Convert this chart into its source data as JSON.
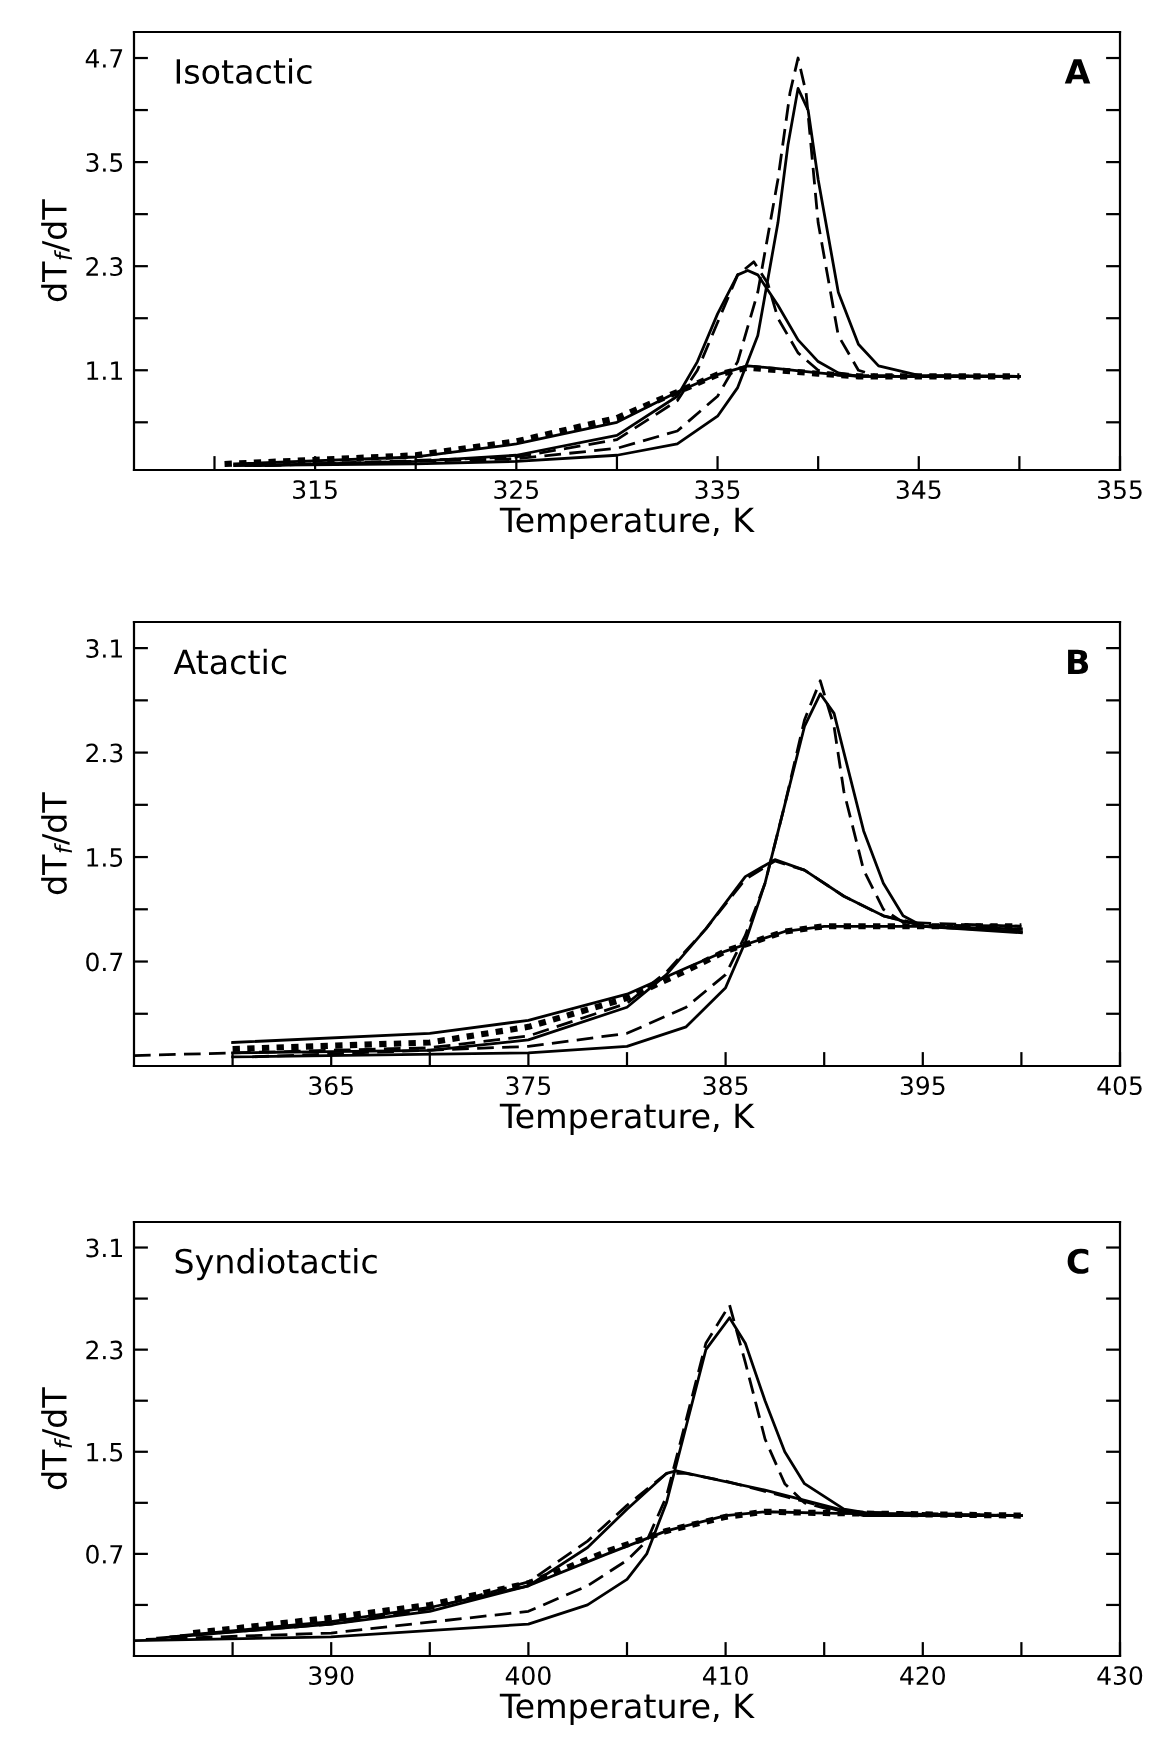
{
  "chart_data": [
    {
      "type": "line",
      "annotations": [
        "Isotactic",
        "A"
      ],
      "xlabel": "Temperature, K",
      "ylabel": "dT$_{f}$/dT",
      "xlim": [
        306,
        355
      ],
      "ylim": [
        -0.05,
        5.0
      ],
      "xticks": [
        {
          "value": 310,
          "label": null
        },
        315,
        {
          "value": 320,
          "label": null
        },
        325,
        {
          "value": 330,
          "label": null
        },
        335,
        {
          "value": 340,
          "label": null
        },
        345,
        {
          "value": 350,
          "label": null
        },
        355
      ],
      "yticks": [
        {
          "value": 0.5,
          "label": null
        },
        1.1,
        {
          "value": 1.7,
          "label": null
        },
        2.3,
        {
          "value": 2.9,
          "label": null
        },
        3.5,
        {
          "value": 4.1,
          "label": null
        },
        4.7
      ],
      "grid": false,
      "legend": false,
      "series": [
        {
          "color": "#000000",
          "line_style": "solid",
          "x": [
            311,
            320,
            325,
            330,
            333,
            335,
            336,
            337,
            338,
            338.5,
            339,
            339.5,
            340,
            341,
            342,
            343,
            345,
            350
          ],
          "values": [
            0.0,
            0.02,
            0.05,
            0.12,
            0.25,
            0.57,
            0.9,
            1.5,
            2.8,
            3.7,
            4.35,
            4.1,
            3.3,
            2.0,
            1.4,
            1.15,
            1.04,
            1.03
          ]
        },
        {
          "color": "#000000",
          "line_style": "dashed",
          "x": [
            311.5,
            325,
            330,
            333,
            335,
            336,
            337,
            338,
            338.6,
            339,
            339.4,
            340,
            341,
            342,
            343,
            350
          ],
          "values": [
            0.0,
            0.08,
            0.2,
            0.4,
            0.8,
            1.2,
            2.0,
            3.3,
            4.3,
            4.7,
            4.3,
            2.8,
            1.5,
            1.1,
            1.03,
            1.03
          ]
        },
        {
          "color": "#000000",
          "line_style": "solid",
          "x": [
            312,
            320,
            325,
            330,
            333,
            334,
            335,
            336,
            336.5,
            337,
            338,
            339,
            340,
            341,
            342,
            350
          ],
          "values": [
            0.0,
            0.05,
            0.12,
            0.35,
            0.8,
            1.2,
            1.75,
            2.2,
            2.25,
            2.2,
            1.85,
            1.45,
            1.2,
            1.07,
            1.03,
            1.03
          ]
        },
        {
          "color": "#000000",
          "line_style": "dashed",
          "x": [
            312.5,
            325,
            330,
            333,
            334,
            335,
            336,
            336.8,
            337.5,
            338,
            339,
            340,
            341,
            350
          ],
          "values": [
            0.0,
            0.1,
            0.3,
            0.75,
            1.1,
            1.65,
            2.2,
            2.35,
            2.1,
            1.7,
            1.3,
            1.1,
            1.04,
            1.03
          ]
        },
        {
          "color": "#000000",
          "line_style": "solid",
          "x": [
            311,
            320,
            325,
            330,
            333,
            335,
            336.5,
            338,
            340,
            342,
            350
          ],
          "values": [
            0.02,
            0.1,
            0.25,
            0.5,
            0.85,
            1.05,
            1.15,
            1.12,
            1.07,
            1.03,
            1.03
          ]
        },
        {
          "color": "#000000",
          "line_style": "dotted",
          "x": [
            310.5,
            320,
            325,
            330,
            333,
            335,
            336.5,
            338,
            340,
            342,
            350
          ],
          "values": [
            0.02,
            0.12,
            0.28,
            0.55,
            0.85,
            1.05,
            1.13,
            1.1,
            1.06,
            1.03,
            1.03
          ]
        }
      ]
    },
    {
      "type": "line",
      "annotations": [
        "Atactic",
        "B"
      ],
      "xlabel": "Temperature, K",
      "ylabel": "dT$_{f}$/dT",
      "xlim": [
        355,
        405
      ],
      "ylim": [
        -0.1,
        3.3
      ],
      "xticks": [
        {
          "value": 360,
          "label": null
        },
        365,
        {
          "value": 370,
          "label": null
        },
        375,
        {
          "value": 380,
          "label": null
        },
        385,
        {
          "value": 390,
          "label": null
        },
        395,
        {
          "value": 400,
          "label": null
        },
        405
      ],
      "yticks": [
        {
          "value": 0.3,
          "label": null
        },
        0.7,
        {
          "value": 1.1,
          "label": null
        },
        1.5,
        {
          "value": 1.9,
          "label": null
        },
        2.3,
        {
          "value": 2.7,
          "label": null
        },
        3.1
      ],
      "grid": false,
      "legend": false,
      "series": [
        {
          "color": "#000000",
          "line_style": "solid",
          "x": [
            360,
            375,
            380,
            383,
            385,
            386,
            387,
            388,
            389,
            389.8,
            390.5,
            391,
            392,
            393,
            394,
            395,
            400
          ],
          "values": [
            -0.03,
            0.0,
            0.05,
            0.2,
            0.5,
            0.85,
            1.3,
            1.9,
            2.5,
            2.75,
            2.6,
            2.3,
            1.7,
            1.3,
            1.05,
            0.97,
            0.92
          ]
        },
        {
          "color": "#000000",
          "line_style": "dashed",
          "x": [
            361,
            375,
            380,
            383,
            385,
            386,
            387,
            388,
            389,
            389.8,
            390.5,
            391,
            392,
            393,
            394,
            400
          ],
          "values": [
            -0.03,
            0.05,
            0.15,
            0.35,
            0.6,
            0.9,
            1.3,
            1.9,
            2.55,
            2.85,
            2.5,
            2.0,
            1.4,
            1.1,
            1.0,
            0.97
          ]
        },
        {
          "color": "#000000",
          "line_style": "solid",
          "x": [
            360,
            370,
            375,
            380,
            382,
            384,
            386,
            387.5,
            389,
            391,
            393,
            395,
            400
          ],
          "values": [
            0.0,
            0.02,
            0.1,
            0.35,
            0.6,
            0.95,
            1.35,
            1.48,
            1.4,
            1.2,
            1.05,
            0.97,
            0.95
          ]
        },
        {
          "color": "#000000",
          "line_style": "dashed",
          "x": [
            355,
            360,
            370,
            375,
            380,
            382,
            384,
            386,
            387.5,
            389,
            391,
            393,
            395,
            400
          ],
          "values": [
            -0.02,
            0.0,
            0.04,
            0.13,
            0.38,
            0.62,
            0.95,
            1.33,
            1.47,
            1.4,
            1.2,
            1.05,
            0.98,
            0.97
          ]
        },
        {
          "color": "#000000",
          "line_style": "solid",
          "x": [
            360,
            370,
            375,
            380,
            383,
            385,
            388,
            390,
            395,
            400
          ],
          "values": [
            0.08,
            0.15,
            0.25,
            0.45,
            0.65,
            0.78,
            0.93,
            0.97,
            0.97,
            0.93
          ]
        },
        {
          "color": "#000000",
          "line_style": "dotted",
          "x": [
            360,
            370,
            375,
            380,
            383,
            385,
            388,
            390,
            395,
            400
          ],
          "values": [
            0.03,
            0.08,
            0.2,
            0.42,
            0.63,
            0.78,
            0.93,
            0.97,
            0.97,
            0.97
          ]
        }
      ]
    },
    {
      "type": "line",
      "annotations": [
        "Syndiotactic",
        "C"
      ],
      "xlabel": "Temperature, K",
      "ylabel": "dT$_{f}$/dT",
      "xlim": [
        380,
        430
      ],
      "ylim": [
        -0.1,
        3.3
      ],
      "xticks": [
        {
          "value": 385,
          "label": null
        },
        390,
        {
          "value": 395,
          "label": null
        },
        400,
        {
          "value": 405,
          "label": null
        },
        410,
        {
          "value": 415,
          "label": null
        },
        420,
        {
          "value": 425,
          "label": null
        },
        430
      ],
      "yticks": [
        {
          "value": 0.3,
          "label": null
        },
        0.7,
        {
          "value": 1.1,
          "label": null
        },
        1.5,
        {
          "value": 1.9,
          "label": null
        },
        2.3,
        {
          "value": 2.7,
          "label": null
        },
        3.1
      ],
      "grid": false,
      "legend": false,
      "series": [
        {
          "color": "#000000",
          "line_style": "solid",
          "x": [
            380,
            390,
            400,
            403,
            405,
            406,
            407,
            408,
            409,
            410.2,
            411,
            412,
            413,
            414,
            416,
            418,
            425
          ],
          "values": [
            0.02,
            0.05,
            0.15,
            0.3,
            0.5,
            0.7,
            1.1,
            1.7,
            2.3,
            2.55,
            2.35,
            1.9,
            1.5,
            1.25,
            1.05,
            1.0,
            1.0
          ]
        },
        {
          "color": "#000000",
          "line_style": "dashed",
          "x": [
            380.6,
            390,
            400,
            403,
            405,
            406,
            407,
            408,
            409,
            410.2,
            411,
            412,
            413,
            414,
            416,
            425
          ],
          "values": [
            0.03,
            0.08,
            0.25,
            0.45,
            0.65,
            0.8,
            1.15,
            1.75,
            2.35,
            2.65,
            2.2,
            1.6,
            1.25,
            1.1,
            1.02,
            1.0
          ]
        },
        {
          "color": "#000000",
          "line_style": "solid",
          "x": [
            381.2,
            390,
            395,
            400,
            403,
            405,
            407,
            407.5,
            409,
            412,
            415,
            417,
            425
          ],
          "values": [
            0.04,
            0.15,
            0.25,
            0.45,
            0.75,
            1.05,
            1.33,
            1.35,
            1.3,
            1.2,
            1.08,
            1.0,
            1.0
          ]
        },
        {
          "color": "#000000",
          "line_style": "dashed",
          "x": [
            381.8,
            390,
            395,
            400,
            403,
            405,
            407,
            408,
            410,
            413,
            416,
            425
          ],
          "values": [
            0.05,
            0.15,
            0.27,
            0.48,
            0.8,
            1.08,
            1.33,
            1.33,
            1.27,
            1.15,
            1.03,
            1.0
          ]
        },
        {
          "color": "#000000",
          "line_style": "solid",
          "x": [
            382.4,
            390,
            395,
            400,
            404,
            407,
            410,
            412,
            415,
            425
          ],
          "values": [
            0.06,
            0.17,
            0.28,
            0.45,
            0.7,
            0.88,
            1.0,
            1.03,
            1.02,
            1.0
          ]
        },
        {
          "color": "#000000",
          "line_style": "dotted",
          "x": [
            383,
            390,
            395,
            400,
            404,
            407,
            410,
            412,
            415,
            425
          ],
          "values": [
            0.08,
            0.2,
            0.3,
            0.47,
            0.72,
            0.88,
            0.99,
            1.03,
            1.02,
            1.0
          ]
        }
      ]
    }
  ]
}
